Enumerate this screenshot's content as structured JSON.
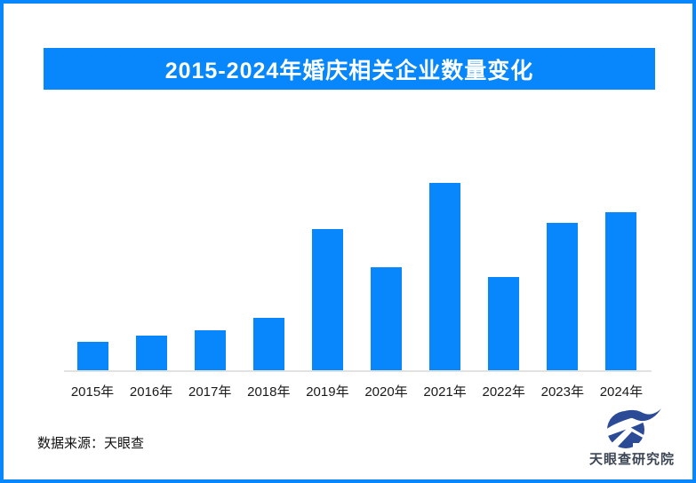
{
  "page": {
    "background": "#ffffff",
    "frame_border_color": "#0787fb"
  },
  "header": {
    "title": "2015-2024年婚庆相关企业数量变化",
    "banner_color": "#0787fb",
    "title_text_color": "#ffffff"
  },
  "chart_data": {
    "type": "bar",
    "title": "2015-2024年婚庆相关企业数量变化",
    "categories": [
      "2015年",
      "2016年",
      "2017年",
      "2018年",
      "2019年",
      "2020年",
      "2021年",
      "2022年",
      "2023年",
      "2024年"
    ],
    "values": [
      32,
      39,
      45,
      59,
      159,
      116,
      211,
      105,
      166,
      178
    ],
    "value_note": "no numeric y-axis or data labels shown; values are relative bar heights measured in screenshot pixels",
    "xlabel": "",
    "ylabel": "",
    "ylim": [
      0,
      238
    ],
    "grid": false,
    "y_axis_visible": false,
    "legend": false,
    "bar_color": "#0787fb",
    "axis_line_color": "#e2e2e2",
    "tick_label_color": "#1a1a1a"
  },
  "footer": {
    "source": "数据来源：天眼查",
    "logo_text": "天眼查研究院",
    "logo_color": "#2b4b97"
  }
}
